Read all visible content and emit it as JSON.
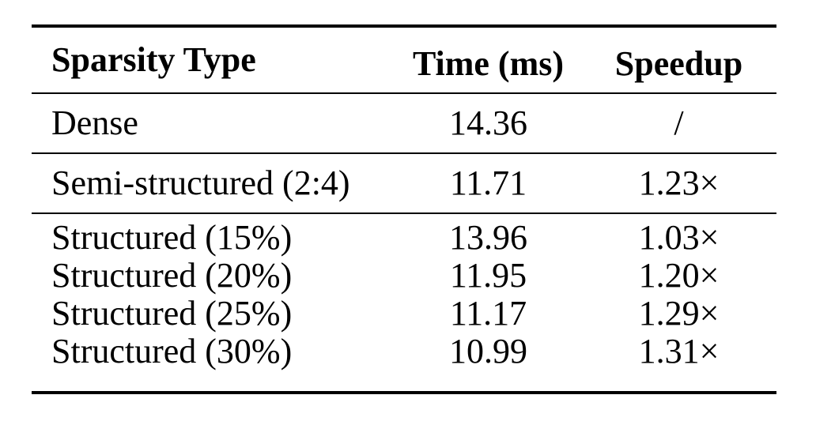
{
  "chart_data": {
    "type": "table",
    "title": "",
    "style": "booktabs-academic-table",
    "columns": [
      "Sparsity Type",
      "Time (ms)",
      "Speedup"
    ],
    "rows": [
      [
        "Dense",
        "14.36",
        "/"
      ],
      [
        "Semi-structured (2:4)",
        "11.71",
        "1.23×"
      ],
      [
        "Structured (15%)",
        "13.96",
        "1.03×"
      ],
      [
        "Structured (20%)",
        "11.95",
        "1.20×"
      ],
      [
        "Structured (25%)",
        "11.17",
        "1.29×"
      ],
      [
        "Structured (30%)",
        "10.99",
        "1.31×"
      ]
    ],
    "row_groups": [
      {
        "name": "dense",
        "row_indices": [
          0
        ]
      },
      {
        "name": "semi-structured",
        "row_indices": [
          1
        ]
      },
      {
        "name": "structured",
        "row_indices": [
          2,
          3,
          4,
          5
        ]
      }
    ],
    "numeric": {
      "time_ms": [
        14.36,
        11.71,
        13.96,
        11.95,
        11.17,
        10.99
      ],
      "speedup_factor": [
        null,
        1.23,
        1.03,
        1.2,
        1.29,
        1.31
      ]
    }
  },
  "colors": {
    "background": "#ffffff",
    "text": "#000000",
    "rule": "#000000"
  }
}
